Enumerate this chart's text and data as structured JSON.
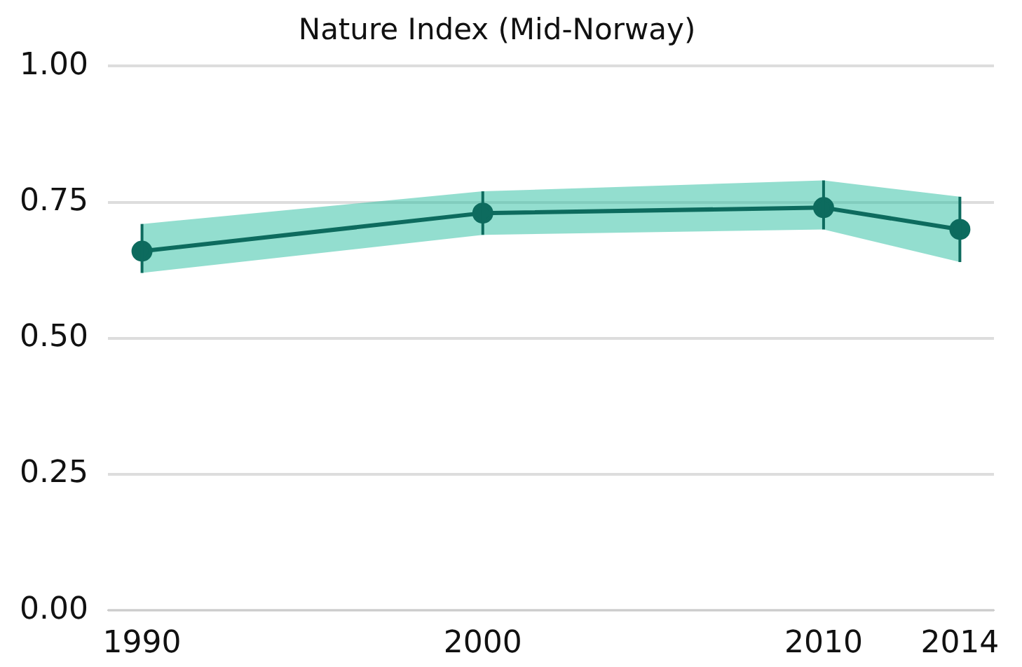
{
  "chart_data": {
    "type": "line",
    "title": "Nature Index (Mid-Norway)",
    "x": [
      1990,
      2000,
      2010,
      2014
    ],
    "series": [
      {
        "color": "#0d6b5e",
        "values": [
          0.66,
          0.73,
          0.74,
          0.7
        ],
        "errors": [
          [
            0.62,
            0.71
          ],
          [
            0.69,
            0.77
          ],
          [
            0.7,
            0.79
          ],
          [
            0.64,
            0.76
          ]
        ],
        "lower": [
          0.62,
          0.69,
          0.7,
          0.64
        ],
        "upper": [
          0.71,
          0.77,
          0.79,
          0.76
        ]
      }
    ],
    "xlim": [
      1989,
      2015
    ],
    "xticks": [
      1990,
      2000,
      2010,
      2014
    ],
    "ylim": [
      0,
      1
    ],
    "yticks": [
      {
        "value": 0,
        "label": "0.00"
      },
      {
        "value": 0.25,
        "label": "0.25"
      },
      {
        "value": 0.5,
        "label": "0.50"
      },
      {
        "value": 0.75,
        "label": "0.75"
      },
      {
        "value": 1,
        "label": "1.00"
      }
    ],
    "grid": "y",
    "legend": false,
    "marker": "circle",
    "line_style": "solid"
  }
}
